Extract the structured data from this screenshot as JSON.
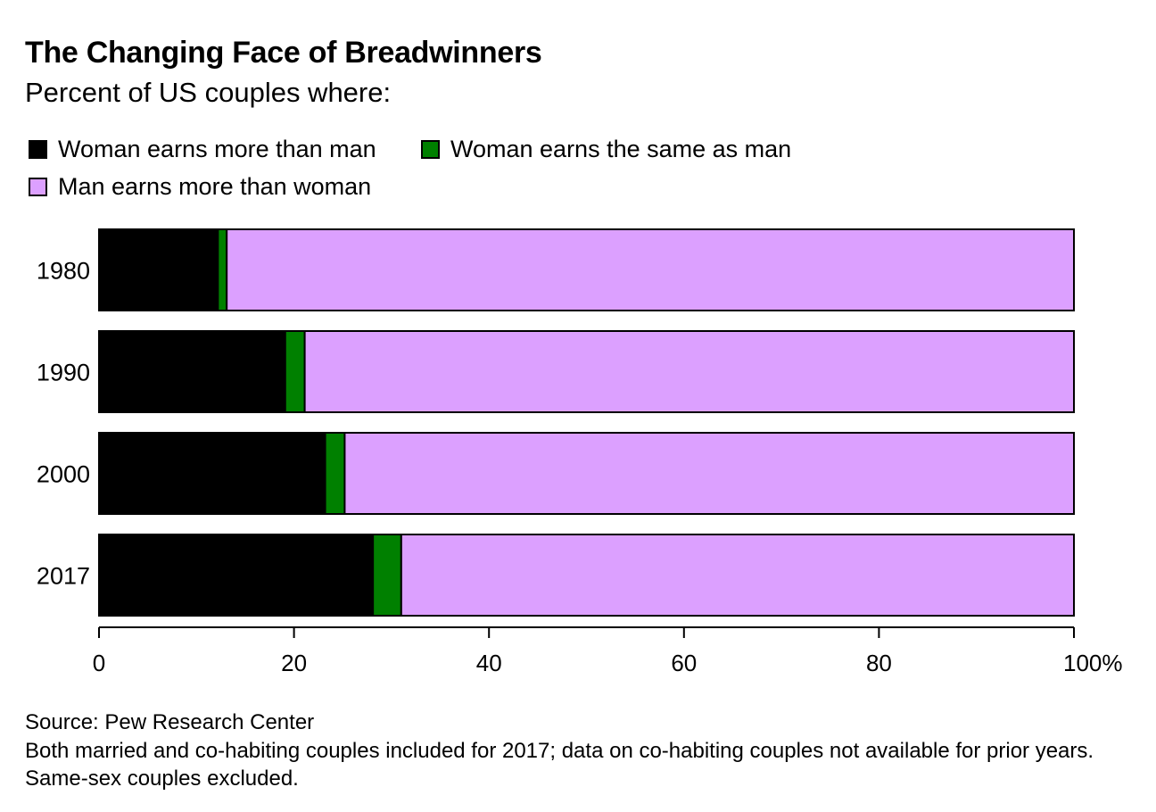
{
  "title": "The Changing Face of Breadwinners",
  "subtitle": "Percent of US couples where:",
  "legend": [
    {
      "label": "Woman earns more than man",
      "color": "#000000"
    },
    {
      "label": "Woman earns the same as man",
      "color": "#008000"
    },
    {
      "label": "Man earns more than woman",
      "color": "#dca0ff"
    }
  ],
  "chart_data": {
    "type": "bar",
    "orientation": "horizontal",
    "stacked": true,
    "categories": [
      "1980",
      "1990",
      "2000",
      "2017"
    ],
    "series": [
      {
        "name": "Woman earns more than man",
        "color": "#000000",
        "values": [
          12.2,
          19.1,
          23.2,
          28.1
        ]
      },
      {
        "name": "Woman earns the same as man",
        "color": "#008000",
        "values": [
          0.9,
          2.0,
          2.0,
          2.9
        ]
      },
      {
        "name": "Man earns more than woman",
        "color": "#dca0ff",
        "values": [
          86.9,
          78.9,
          74.8,
          69.0
        ]
      }
    ],
    "xlim": [
      0,
      100
    ],
    "xticks": [
      0,
      20,
      40,
      60,
      80,
      100
    ],
    "xtick_labels": [
      "0",
      "20",
      "40",
      "60",
      "80",
      "100%"
    ],
    "grid": false,
    "legend_position": "top"
  },
  "source": "Source: Pew Research Center",
  "note": "Both married and co-habiting couples included for 2017; data on co-habiting couples not available for prior years. Same-sex couples excluded."
}
